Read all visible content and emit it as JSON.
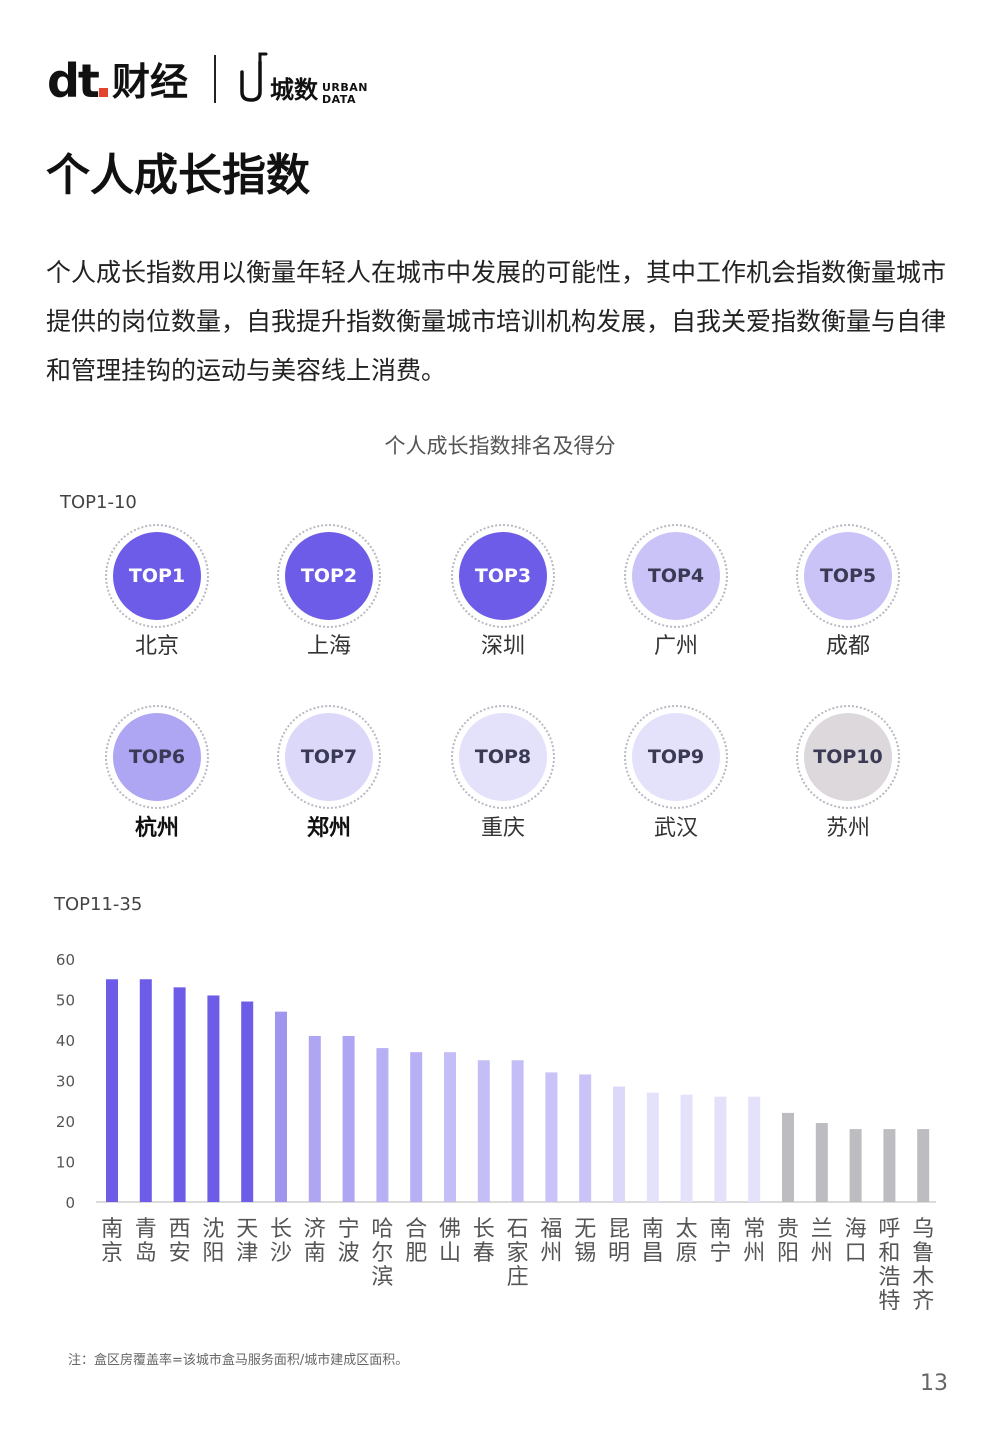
{
  "header": {
    "logo_dt": "dt",
    "logo_caijing": "财经",
    "logo_city": "城数",
    "logo_urban": "URBAN",
    "logo_data": "DATA"
  },
  "page_title": "个人成长指数",
  "intro": "个人成长指数用以衡量年轻人在城市中发展的可能性，其中工作机会指数衡量城市提供的岗位数量，自我提升指数衡量城市培训机构发展，自我关爱指数衡量与自律和管理挂钩的运动与美容线上消费。",
  "chart_title": "个人成长指数排名及得分",
  "top10_label": "TOP1-10",
  "top35_label": "TOP11-35",
  "top10": [
    {
      "rank": "TOP1",
      "city": "北京",
      "color": "#6c5ce7"
    },
    {
      "rank": "TOP2",
      "city": "上海",
      "color": "#6c5ce7"
    },
    {
      "rank": "TOP3",
      "city": "深圳",
      "color": "#6c5ce7"
    },
    {
      "rank": "TOP4",
      "city": "广州",
      "color": "#c9c3f7"
    },
    {
      "rank": "TOP5",
      "city": "成都",
      "color": "#c9c3f7"
    },
    {
      "rank": "TOP6",
      "city": "杭州",
      "color": "#aea6f3"
    },
    {
      "rank": "TOP7",
      "city": "郑州",
      "color": "#dcd8fa"
    },
    {
      "rank": "TOP8",
      "city": "重庆",
      "color": "#e4e1fb"
    },
    {
      "rank": "TOP9",
      "city": "武汉",
      "color": "#e4e1fb"
    },
    {
      "rank": "TOP10",
      "city": "苏州",
      "color": "#dcd8dc"
    }
  ],
  "chart_data": {
    "type": "bar",
    "categories": [
      "南京",
      "青岛",
      "西安",
      "沈阳",
      "天津",
      "长沙",
      "济南",
      "宁波",
      "哈尔滨",
      "合肥",
      "佛山",
      "长春",
      "石家庄",
      "福州",
      "无锡",
      "昆明",
      "南昌",
      "太原",
      "南宁",
      "常州",
      "贵阳",
      "兰州",
      "海口",
      "呼和浩特",
      "乌鲁木齐"
    ],
    "values": [
      55,
      55,
      53,
      51,
      49.5,
      47,
      41,
      41,
      38,
      37,
      37,
      35,
      35,
      32,
      31.5,
      28.5,
      27,
      26.5,
      26,
      26,
      22,
      19.5,
      18,
      18,
      18
    ],
    "colors": [
      "#6c5ce7",
      "#6c5ce7",
      "#6c5ce7",
      "#6c5ce7",
      "#6c5ce7",
      "#9f95ef",
      "#aea6f3",
      "#aea6f3",
      "#b7b0f4",
      "#b7b0f4",
      "#c4bef6",
      "#c4bef6",
      "#c4bef6",
      "#c9c3f7",
      "#c9c3f7",
      "#dcd8fa",
      "#e4e1fb",
      "#e4e1fb",
      "#e4e1fb",
      "#e4e1fb",
      "#bdbcc0",
      "#bdbcc0",
      "#bdbcc0",
      "#bdbcc0",
      "#bdbcc0"
    ],
    "yticks": [
      "60",
      "50",
      "40",
      "30",
      "20",
      "10",
      "0"
    ],
    "ylim": [
      0,
      60
    ],
    "grid": false
  },
  "footnote": "注：盒区房覆盖率=该城市盒马服务面积/城市建成区面积。",
  "page_number": "13"
}
